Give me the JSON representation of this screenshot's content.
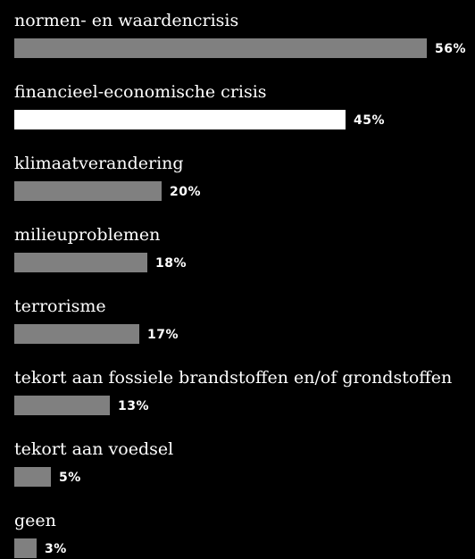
{
  "chart_data": {
    "type": "bar",
    "orientation": "horizontal",
    "categories": [
      "normen- en waardencrisis",
      "financieel-economische crisis",
      "klimaatverandering",
      "milieuproblemen",
      "terrorisme",
      "tekort aan fossiele brandstoffen en/of grondstoffen",
      "tekort aan voedsel",
      "geen"
    ],
    "values": [
      56,
      45,
      20,
      18,
      17,
      13,
      5,
      3
    ],
    "value_labels": [
      "56%",
      "45%",
      "20%",
      "18%",
      "17%",
      "13%",
      "5%",
      "3%"
    ],
    "unit": "%",
    "xlim": [
      0,
      56
    ],
    "grid": false,
    "legend": "none",
    "colors": {
      "background": "#000000",
      "bar_default": "#808080",
      "bar_highlight": "#ffffff",
      "text": "#ffffff"
    },
    "highlight_index": 1
  }
}
